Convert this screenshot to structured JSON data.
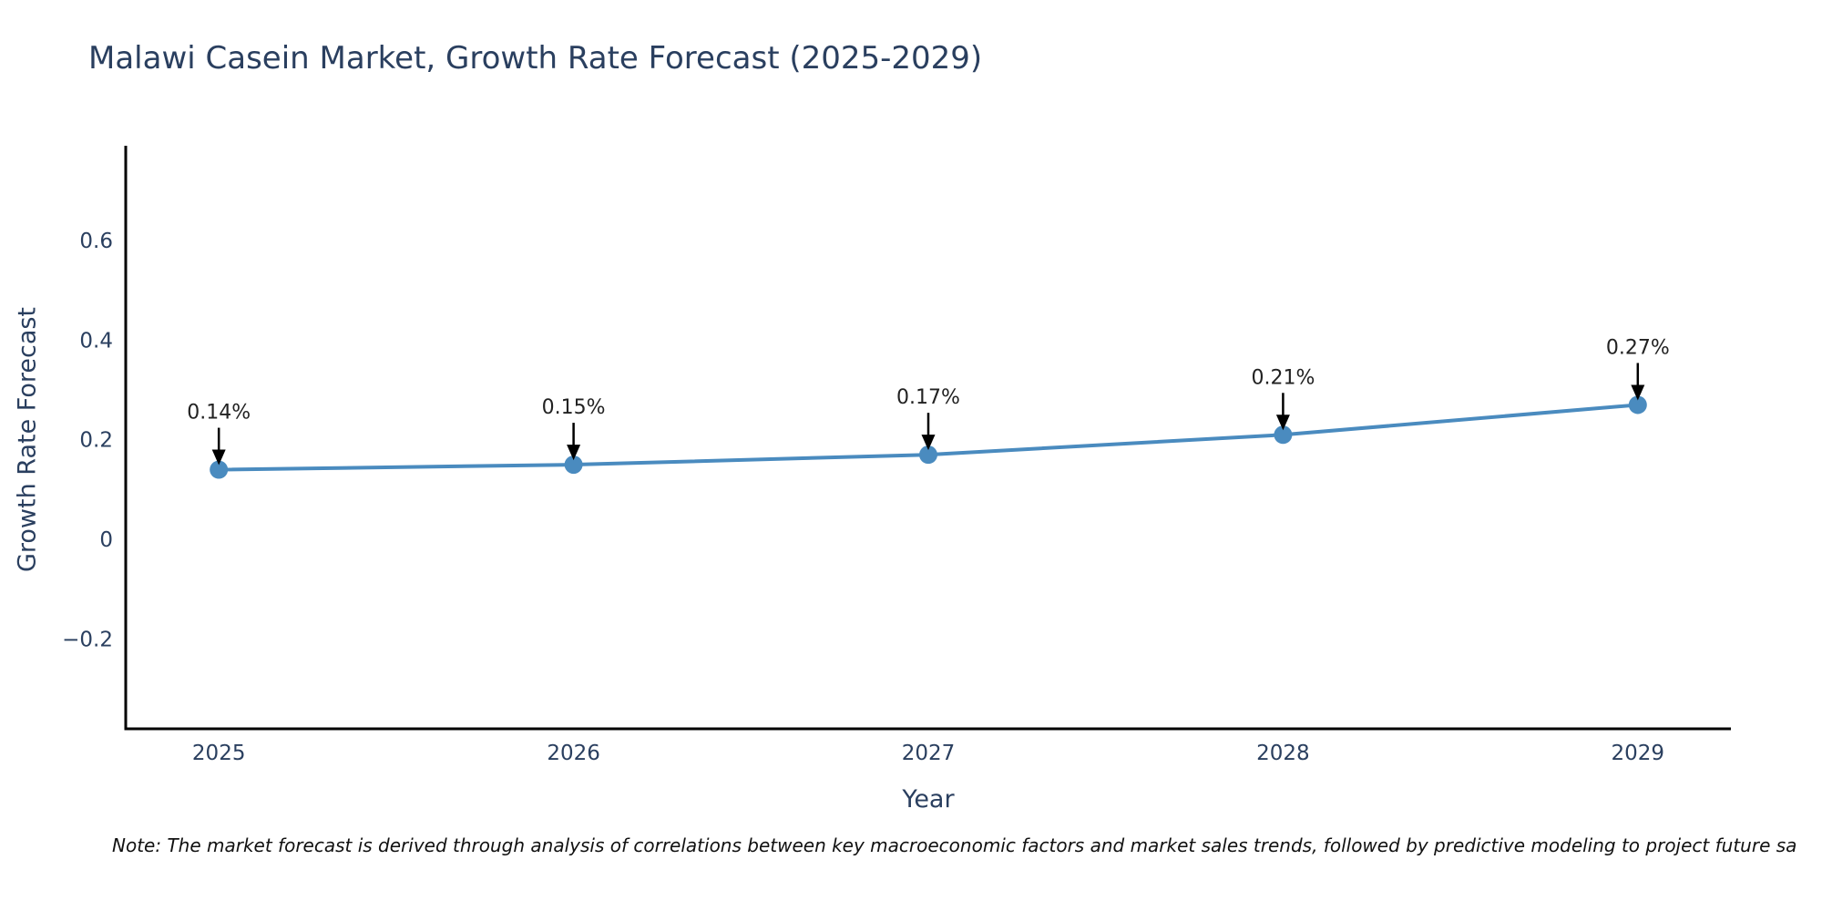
{
  "header": {
    "title": "Malawi Casein Market, Growth Rate Forecast (2025-2029)"
  },
  "chart_data": {
    "type": "line",
    "title": "Malawi Casein Market, Growth Rate Forecast (2025-2029)",
    "categories": [
      "2025",
      "2026",
      "2027",
      "2028",
      "2029"
    ],
    "series": [
      {
        "name": "Growth Rate Forecast",
        "values": [
          0.14,
          0.15,
          0.17,
          0.21,
          0.27
        ]
      }
    ],
    "point_labels": [
      "0.14%",
      "0.15%",
      "0.17%",
      "0.21%",
      "0.27%"
    ],
    "xlabel": "Year",
    "ylabel": "Growth Rate Forecast",
    "ylim": [
      -0.38,
      0.79
    ],
    "yticks": [
      -0.2,
      0,
      0.2,
      0.4,
      0.6
    ],
    "grid": false,
    "legend": "none",
    "annotation_style": "down-arrows-to-points",
    "colors": {
      "line": "#4a8bbf",
      "marker": "#4a8bbf",
      "arrow": "#000000",
      "title_text": "#2a3f5f",
      "axis_text": "#2a3f5f",
      "annotation_text": "#222222",
      "spine": "#000000"
    }
  },
  "footer": {
    "note": "Note: The market forecast is derived through analysis of correlations between key macroeconomic factors and market sales trends, followed by predictive modeling to project future sa"
  }
}
